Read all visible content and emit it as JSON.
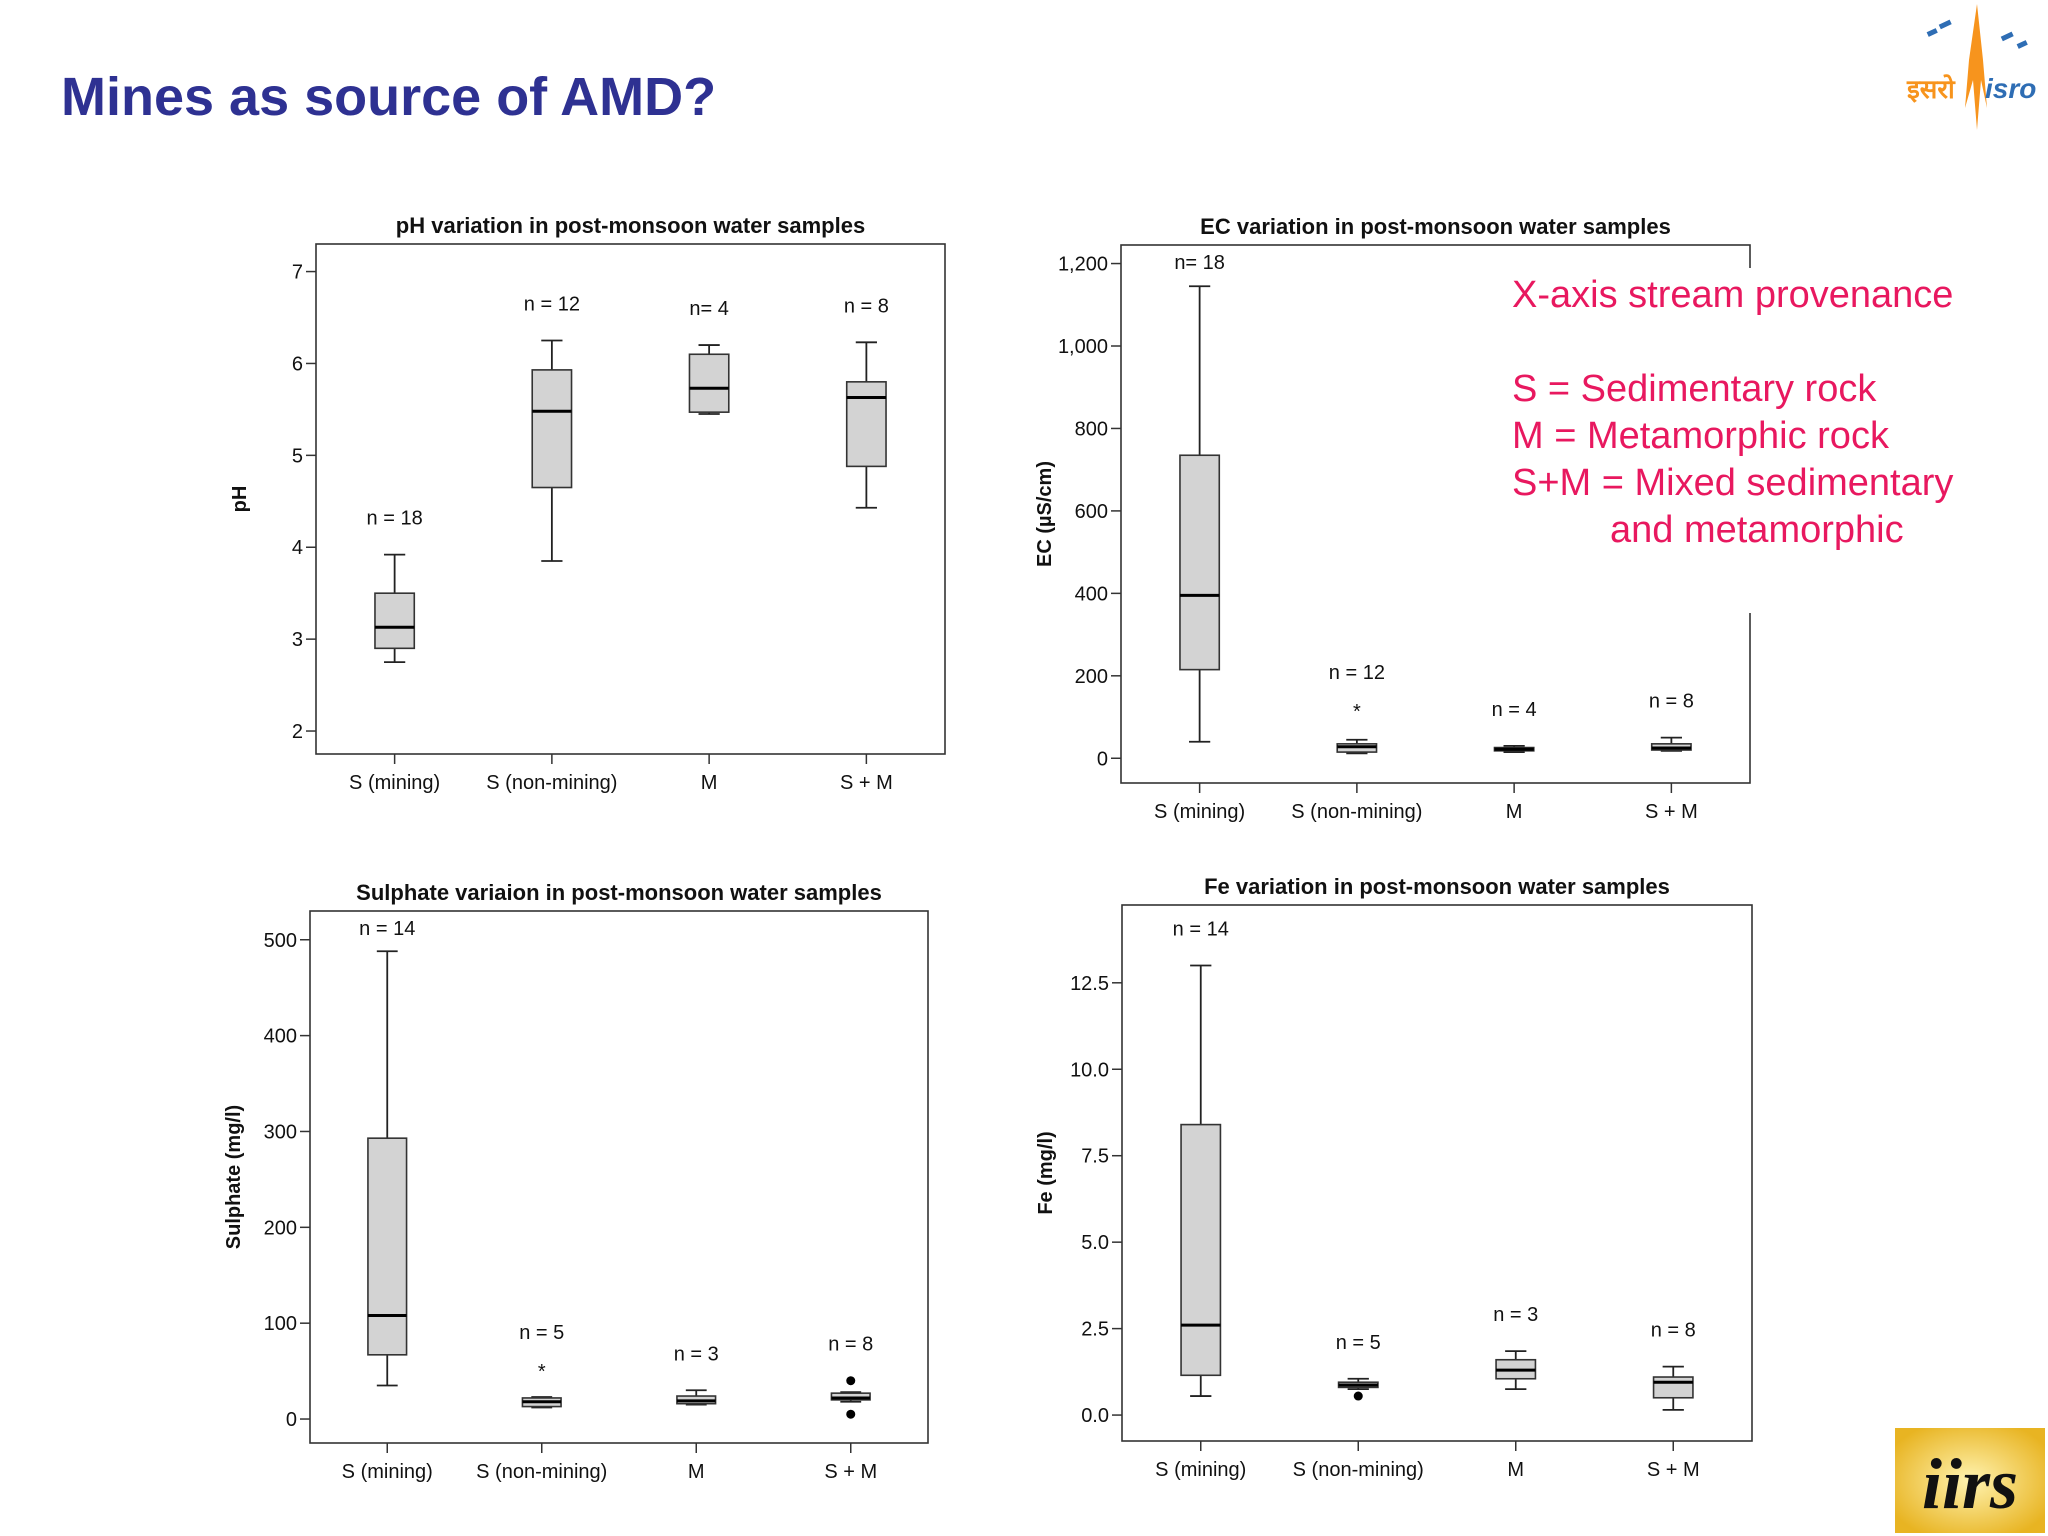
{
  "slide": {
    "title": "Mines as source of AMD?",
    "logo_isro": {
      "text_hindi": "इसरो",
      "text_latin": "isro",
      "color": "#f7941d"
    },
    "logo_iirs": {
      "text": "iirs"
    }
  },
  "legend_note": {
    "color": "#e8185f",
    "lines": [
      "X-axis stream provenance",
      "S = Sedimentary rock",
      "M = Metamorphic rock",
      "S+M = Mixed sedimentary",
      "and metamorphic"
    ]
  },
  "chart_data": [
    {
      "type": "boxplot",
      "title": "pH variation in post-monsoon water samples",
      "xlabel": "",
      "ylabel": "pH",
      "ylim": [
        1.75,
        7.3
      ],
      "yticks": [
        2,
        3,
        4,
        5,
        6,
        7
      ],
      "ytick_labels": [
        "2",
        "3",
        "4",
        "5",
        "6",
        "7"
      ],
      "categories": [
        "S (mining)",
        "S (non-mining)",
        "M",
        "S + M"
      ],
      "n_labels": [
        "n = 18",
        "n = 12",
        "n= 4",
        "n = 8"
      ],
      "n_values": [
        18,
        12,
        4,
        8
      ],
      "boxes": [
        {
          "whisker_low": 2.75,
          "q1": 2.9,
          "median": 3.13,
          "q3": 3.5,
          "whisker_high": 3.92
        },
        {
          "whisker_low": 3.85,
          "q1": 4.65,
          "median": 5.48,
          "q3": 5.93,
          "whisker_high": 6.25
        },
        {
          "whisker_low": 5.45,
          "q1": 5.47,
          "median": 5.73,
          "q3": 6.1,
          "whisker_high": 6.2
        },
        {
          "whisker_low": 4.43,
          "q1": 4.88,
          "median": 5.63,
          "q3": 5.8,
          "whisker_high": 6.23
        }
      ],
      "outliers": [
        [],
        [],
        [],
        []
      ]
    },
    {
      "type": "boxplot",
      "title": "EC variation in post-monsoon water samples",
      "xlabel": "",
      "ylabel": "EC (µS/cm)",
      "ylim": [
        -60,
        1245
      ],
      "yticks": [
        0,
        200,
        400,
        600,
        800,
        1000,
        1200
      ],
      "ytick_labels": [
        "0",
        "200",
        "400",
        "600",
        "800",
        "1,000",
        "1,200"
      ],
      "categories": [
        "S (mining)",
        "S (non-mining)",
        "M",
        "S + M"
      ],
      "n_labels": [
        "n= 18",
        "n = 12",
        "n = 4",
        "n = 8"
      ],
      "n_values": [
        18,
        12,
        4,
        8
      ],
      "boxes": [
        {
          "whisker_low": 40,
          "q1": 215,
          "median": 395,
          "q3": 735,
          "whisker_high": 1145
        },
        {
          "whisker_low": 12,
          "q1": 15,
          "median": 28,
          "q3": 35,
          "whisker_high": 45
        },
        {
          "whisker_low": 15,
          "q1": 18,
          "median": 22,
          "q3": 26,
          "whisker_high": 30
        },
        {
          "whisker_low": 18,
          "q1": 20,
          "median": 25,
          "q3": 35,
          "whisker_high": 50
        }
      ],
      "outliers": [
        [],
        [
          {
            "value": 120,
            "marker": "*"
          }
        ],
        [],
        []
      ]
    },
    {
      "type": "boxplot",
      "title": "Sulphate variaion in post-monsoon water samples",
      "xlabel": "",
      "ylabel": "Sulphate (mg/l)",
      "ylim": [
        -25,
        530
      ],
      "yticks": [
        0,
        100,
        200,
        300,
        400,
        500
      ],
      "ytick_labels": [
        "0",
        "100",
        "200",
        "300",
        "400",
        "500"
      ],
      "categories": [
        "S (mining)",
        "S (non-mining)",
        "M",
        "S + M"
      ],
      "n_labels": [
        "n = 14",
        "n = 5",
        "n = 3",
        "n = 8"
      ],
      "n_values": [
        14,
        5,
        3,
        8
      ],
      "boxes": [
        {
          "whisker_low": 35,
          "q1": 67,
          "median": 108,
          "q3": 293,
          "whisker_high": 488
        },
        {
          "whisker_low": 12,
          "q1": 13,
          "median": 18,
          "q3": 22,
          "whisker_high": 23
        },
        {
          "whisker_low": 15,
          "q1": 16,
          "median": 19,
          "q3": 24,
          "whisker_high": 30
        },
        {
          "whisker_low": 18,
          "q1": 20,
          "median": 22,
          "q3": 27,
          "whisker_high": 28
        }
      ],
      "outliers": [
        [],
        [
          {
            "value": 52,
            "marker": "*"
          }
        ],
        [],
        [
          {
            "value": 40,
            "marker": "dot"
          },
          {
            "value": 5,
            "marker": "dot"
          }
        ]
      ]
    },
    {
      "type": "boxplot",
      "title": "Fe variation in post-monsoon water samples",
      "xlabel": "",
      "ylabel": "Fe (mg/l)",
      "ylim": [
        -0.75,
        14.75
      ],
      "yticks": [
        0.0,
        2.5,
        5.0,
        7.5,
        10.0,
        12.5
      ],
      "ytick_labels": [
        "0.0",
        "2.5",
        "5.0",
        "7.5",
        "10.0",
        "12.5"
      ],
      "categories": [
        "S (mining)",
        "S (non-mining)",
        "M",
        "S + M"
      ],
      "n_labels": [
        "n = 14",
        "n = 5",
        "n = 3",
        "n = 8"
      ],
      "n_values": [
        14,
        5,
        3,
        8
      ],
      "boxes": [
        {
          "whisker_low": 0.55,
          "q1": 1.15,
          "median": 2.6,
          "q3": 8.4,
          "whisker_high": 13.0
        },
        {
          "whisker_low": 0.75,
          "q1": 0.8,
          "median": 0.87,
          "q3": 0.95,
          "whisker_high": 1.05
        },
        {
          "whisker_low": 0.75,
          "q1": 1.05,
          "median": 1.3,
          "q3": 1.6,
          "whisker_high": 1.85
        },
        {
          "whisker_low": 0.15,
          "q1": 0.5,
          "median": 0.95,
          "q3": 1.1,
          "whisker_high": 1.4
        }
      ],
      "outliers": [
        [],
        [
          {
            "value": 0.55,
            "marker": "dot"
          }
        ],
        [],
        []
      ]
    }
  ]
}
